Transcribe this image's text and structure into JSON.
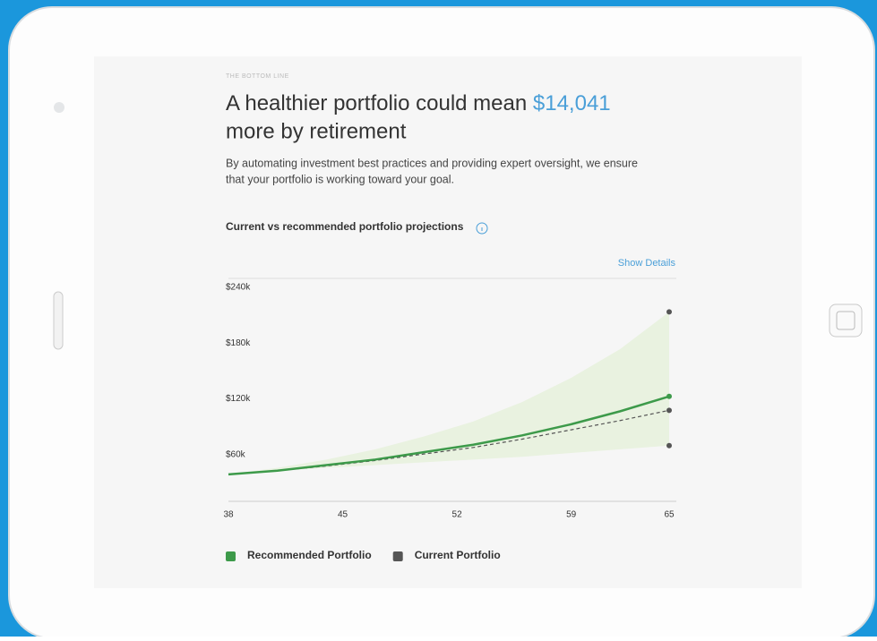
{
  "header": {
    "eyebrow": "THE BOTTOM LINE",
    "title_prefix": "A healthier portfolio could mean",
    "amount": "$14,041",
    "title_suffix": "more by retirement",
    "body_line1": "By automating investment best practices and providing expert oversight, we ensure",
    "body_line2": "that your portfolio is working toward your goal."
  },
  "chart_data": {
    "type": "line",
    "title": "Current vs recommended portfolio projections",
    "link": "Show Details",
    "x": [
      38,
      41,
      44,
      47,
      50,
      53,
      56,
      59,
      62,
      65
    ],
    "series": [
      {
        "name": "Recommended Portfolio",
        "color": "#3d9a4a",
        "values": [
          29000,
          33000,
          39000,
          45000,
          53000,
          61000,
          71000,
          83000,
          97000,
          113000
        ]
      },
      {
        "name": "Current Portfolio",
        "color": "#555555",
        "values": [
          29000,
          33000,
          38000,
          44000,
          51000,
          58000,
          67000,
          77000,
          87000,
          98000
        ]
      }
    ],
    "range": {
      "color": "#e9f2e0",
      "high": [
        29000,
        36000,
        45000,
        56000,
        70000,
        86000,
        107000,
        133000,
        164000,
        204000
      ],
      "low": [
        29000,
        33000,
        36000,
        39000,
        42000,
        45000,
        48000,
        52000,
        56000,
        60000
      ]
    },
    "xlim": [
      38,
      65
    ],
    "xticks": [
      38,
      45,
      52,
      59,
      65
    ],
    "ylim": [
      0,
      240000
    ],
    "yticks": [
      {
        "value": 60000,
        "label": "$60k"
      },
      {
        "value": 120000,
        "label": "$120k"
      },
      {
        "value": 180000,
        "label": "$180k"
      },
      {
        "value": 240000,
        "label": "$240k"
      }
    ],
    "grid": false
  }
}
